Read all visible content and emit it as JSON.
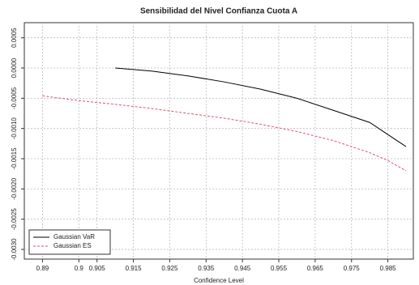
{
  "chart_data": {
    "type": "line",
    "title": "Sensibilidad del Nivel Confianza Cuota A",
    "x_label": "Confidence Level",
    "x": [
      0.89,
      0.9,
      0.91,
      0.92,
      0.93,
      0.94,
      0.95,
      0.96,
      0.97,
      0.98,
      0.985,
      0.99
    ],
    "series": [
      {
        "name": "Gaussian VaR",
        "color": "#000000",
        "dash": false,
        "values": [
          null,
          null,
          0.0,
          -5e-05,
          -0.00013,
          -0.00023,
          -0.00035,
          -0.0005,
          -0.0007,
          -0.0009,
          -0.0011,
          -0.0013
        ]
      },
      {
        "name": "Gaussian ES",
        "color": "#df536b",
        "dash": true,
        "values": [
          -0.00046,
          -0.00054,
          -0.0006,
          -0.00067,
          -0.00075,
          -0.00083,
          -0.00093,
          -0.00105,
          -0.0012,
          -0.0014,
          -0.00153,
          -0.0017
        ]
      }
    ],
    "xlim": [
      0.885,
      0.992
    ],
    "xticks": [
      0.89,
      0.9,
      0.905,
      0.915,
      0.925,
      0.935,
      0.945,
      0.955,
      0.965,
      0.975,
      0.985
    ],
    "ylim": [
      -0.00316,
      0.00075
    ],
    "yticks": [
      0.0005,
      {
        "value": 0,
        "label": "0.0000"
      },
      -0.0005,
      {
        "value": -0.001,
        "label": "-0.0010"
      },
      -0.0015,
      {
        "value": -0.002,
        "label": "-0.0020"
      },
      -0.0025,
      {
        "value": -0.003,
        "label": "-0.0030"
      }
    ],
    "grid": true,
    "legend": "bottom-left"
  }
}
